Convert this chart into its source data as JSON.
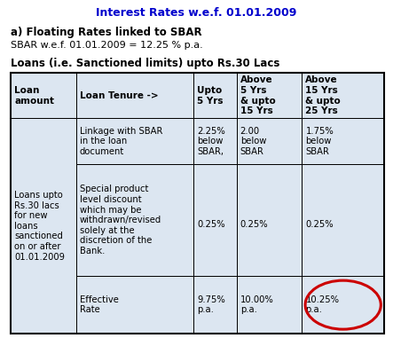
{
  "title": "Interest Rates w.e.f. 01.01.2009",
  "title_color": "#0000CC",
  "subtitle_bold": "a) Floating Rates linked to SBAR",
  "subtitle_normal": "SBAR w.e.f. 01.01.2009 = 12.25 % p.a.",
  "table_header": "Loans (i.e. Sanctioned limits) upto Rs.30 Lacs",
  "col_headers": [
    "Loan\namount",
    "Loan Tenure ->",
    "Upto\n5 Yrs",
    "Above\n5 Yrs\n& upto\n15 Yrs",
    "Above\n15 Yrs\n& upto\n25 Yrs"
  ],
  "row0_col0": "Loans upto\nRs.30 lacs\nfor new\nloans\nsanctioned\non or after\n01.01.2009",
  "row0_col1": "Linkage with SBAR\nin the loan\ndocument",
  "row0_col2": "2.25%\nbelow\nSBAR,",
  "row0_col3": "2.00\nbelow\nSBAR",
  "row0_col4": "1.75%\nbelow\nSBAR",
  "row1_col1": "Special product\nlevel discount\nwhich may be\nwithdrawn/revised\nsolely at the\ndiscretion of the\nBank.",
  "row1_col2": "0.25%",
  "row1_col3": "0.25%",
  "row1_col4": "0.25%",
  "row2_col1": "Effective\nRate",
  "row2_col2": "9.75%\np.a.",
  "row2_col3": "10.00%\np.a.",
  "row2_col4": "10.25%\np.a.",
  "bg_color": "#dce6f1",
  "border_color": "#000000",
  "text_color": "#000000",
  "circle_color": "#CC0000",
  "fig_width": 4.43,
  "fig_height": 3.81,
  "dpi": 100
}
